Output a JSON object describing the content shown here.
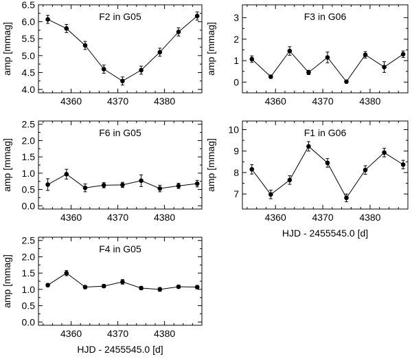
{
  "chart_data": [
    {
      "type": "line",
      "title": "F2 in G05",
      "ylabel": "amp [mmag]",
      "xlabel": "",
      "xlim": [
        4353,
        4388
      ],
      "ylim": [
        3.9,
        6.5
      ],
      "xticks": [
        4360,
        4370,
        4380
      ],
      "xtick_labels": [
        "4360",
        "4370",
        "4380"
      ],
      "yticks": [
        4.0,
        4.5,
        5.0,
        5.5,
        6.0,
        6.5
      ],
      "ytick_labels": [
        "4.0",
        "4.5",
        "5.0",
        "5.5",
        "6.0",
        "6.5"
      ],
      "x": [
        4355,
        4359,
        4363,
        4367,
        4371,
        4375,
        4379,
        4383,
        4387
      ],
      "y": [
        6.07,
        5.8,
        5.3,
        4.6,
        4.25,
        4.57,
        5.1,
        5.7,
        6.17
      ],
      "err": [
        0.12,
        0.12,
        0.12,
        0.12,
        0.12,
        0.12,
        0.12,
        0.12,
        0.12
      ]
    },
    {
      "type": "line",
      "title": "F3 in G06",
      "ylabel": "amp [mmag]",
      "xlabel": "",
      "xlim": [
        4353,
        4388
      ],
      "ylim": [
        -0.5,
        3.6
      ],
      "xticks": [
        4360,
        4370,
        4380
      ],
      "xtick_labels": [
        "4360",
        "4370",
        "4380"
      ],
      "yticks": [
        0,
        1,
        2,
        3
      ],
      "ytick_labels": [
        "0",
        "1",
        "2",
        "3"
      ],
      "x": [
        4355,
        4359,
        4363,
        4367,
        4371,
        4375,
        4379,
        4383,
        4387
      ],
      "y": [
        1.07,
        0.25,
        1.45,
        0.45,
        1.15,
        0.02,
        1.27,
        0.7,
        1.3
      ],
      "err": [
        0.15,
        0.08,
        0.2,
        0.1,
        0.25,
        0.05,
        0.15,
        0.25,
        0.15
      ]
    },
    {
      "type": "line",
      "title": "F6 in G05",
      "ylabel": "amp [mmag]",
      "xlabel": "",
      "xlim": [
        4353,
        4388
      ],
      "ylim": [
        -0.1,
        2.6
      ],
      "xticks": [
        4360,
        4370,
        4380
      ],
      "xtick_labels": [
        "4360",
        "4370",
        "4380"
      ],
      "yticks": [
        0.0,
        0.5,
        1.0,
        1.5,
        2.0,
        2.5
      ],
      "ytick_labels": [
        "0.0",
        "0.5",
        "1.0",
        "1.5",
        "2.0",
        "2.5"
      ],
      "x": [
        4355,
        4359,
        4363,
        4367,
        4371,
        4375,
        4379,
        4383,
        4387
      ],
      "y": [
        0.65,
        0.97,
        0.55,
        0.63,
        0.64,
        0.77,
        0.53,
        0.61,
        0.68
      ],
      "err": [
        0.18,
        0.15,
        0.12,
        0.08,
        0.08,
        0.18,
        0.1,
        0.08,
        0.1
      ]
    },
    {
      "type": "line",
      "title": "F1 in G06",
      "ylabel": "amp [mmag]",
      "xlabel": "HJD - 2455545.0 [d]",
      "xlim": [
        4353,
        4388
      ],
      "ylim": [
        6.3,
        10.4
      ],
      "xticks": [
        4360,
        4370,
        4380
      ],
      "xtick_labels": [
        "4360",
        "4370",
        "4380"
      ],
      "yticks": [
        7,
        8,
        9,
        10
      ],
      "ytick_labels": [
        "7",
        "8",
        "9",
        "10"
      ],
      "x": [
        4355,
        4359,
        4363,
        4367,
        4371,
        4375,
        4379,
        4383,
        4387
      ],
      "y": [
        8.15,
        6.98,
        7.65,
        9.22,
        8.45,
        6.82,
        8.12,
        8.93,
        8.37
      ],
      "err": [
        0.22,
        0.2,
        0.2,
        0.22,
        0.2,
        0.18,
        0.2,
        0.2,
        0.2
      ]
    },
    {
      "type": "line",
      "title": "F4 in G05",
      "ylabel": "amp [mmag]",
      "xlabel": "HJD - 2455545.0 [d]",
      "xlim": [
        4353,
        4388
      ],
      "ylim": [
        -0.1,
        2.6
      ],
      "xticks": [
        4360,
        4370,
        4380
      ],
      "xtick_labels": [
        "4360",
        "4370",
        "4380"
      ],
      "yticks": [
        0.0,
        0.5,
        1.0,
        1.5,
        2.0,
        2.5
      ],
      "ytick_labels": [
        "0.0",
        "0.5",
        "1.0",
        "1.5",
        "2.0",
        "2.5"
      ],
      "x": [
        4355,
        4359,
        4363,
        4367,
        4371,
        4375,
        4379,
        4383,
        4387
      ],
      "y": [
        1.13,
        1.5,
        1.07,
        1.1,
        1.23,
        1.04,
        1.0,
        1.08,
        1.07
      ],
      "err": [
        0.05,
        0.08,
        0.05,
        0.05,
        0.07,
        0.05,
        0.06,
        0.05,
        0.05
      ]
    }
  ]
}
